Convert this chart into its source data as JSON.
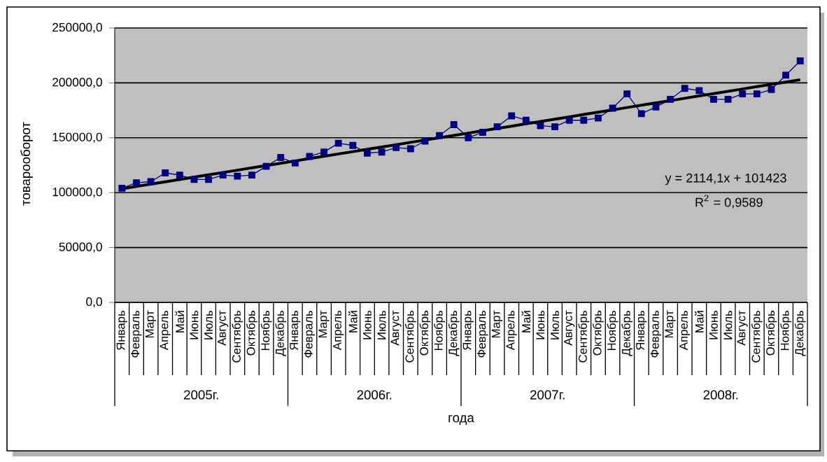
{
  "chart_data": {
    "type": "line",
    "xlabel": "года",
    "ylabel": "товарооборот",
    "categories": [
      "Январь",
      "Февраль",
      "Март",
      "Апрель",
      "Май",
      "Июнь",
      "Июль",
      "Август",
      "Сентябрь",
      "Октябрь",
      "Ноябрь",
      "Декабрь",
      "Январь",
      "Февраль",
      "Март",
      "Апрель",
      "Май",
      "Июнь",
      "Июль",
      "Август",
      "Сентябрь",
      "Октябрь",
      "Ноябрь",
      "Декабрь",
      "Январь",
      "Февраль",
      "Март",
      "Апрель",
      "Май",
      "Июнь",
      "Июль",
      "Август",
      "Сентябрь",
      "Октябрь",
      "Ноябрь",
      "Декабрь",
      "Январь",
      "Февраль",
      "Март",
      "Апрель",
      "Май",
      "Июнь",
      "Июль",
      "Август",
      "Сентябрь",
      "Октябрь",
      "Ноябрь",
      "Декабрь"
    ],
    "series": [
      {
        "type": "line",
        "color": "#000080",
        "marker": "square",
        "values": [
          104000,
          109000,
          110000,
          118000,
          116000,
          112000,
          112000,
          116000,
          115000,
          116000,
          124000,
          132000,
          127000,
          133000,
          137000,
          145000,
          143000,
          136000,
          137000,
          141000,
          140000,
          147000,
          152000,
          162000,
          150000,
          155000,
          160000,
          170000,
          166000,
          161000,
          160000,
          166000,
          166000,
          168000,
          177000,
          190000,
          172000,
          178000,
          185000,
          195000,
          193000,
          185000,
          185000,
          190000,
          190000,
          194000,
          207000,
          220000
        ]
      },
      {
        "type": "line",
        "color": "#000000",
        "marker": "none",
        "values": [
          103537,
          105651,
          107765,
          109879,
          111994,
          114108,
          116222,
          118336,
          120450,
          122564,
          124678,
          126792,
          128906,
          131020,
          133135,
          135249,
          137363,
          139477,
          141591,
          143705,
          145819,
          147933,
          150047,
          152161,
          154276,
          156390,
          158504,
          160618,
          162732,
          164846,
          166960,
          169074,
          171188,
          173302,
          175417,
          177531,
          179645,
          181759,
          183873,
          185987,
          188101,
          190215,
          192329,
          194443,
          196558,
          198672,
          200786,
          202900
        ]
      }
    ],
    "ylim": [
      0,
      250000
    ],
    "yticks": [
      {
        "value": 0,
        "label": "0,0"
      },
      {
        "value": 50000,
        "label": "50000,0"
      },
      {
        "value": 100000,
        "label": "100000,0"
      },
      {
        "value": 150000,
        "label": "150000,0"
      },
      {
        "value": 200000,
        "label": "200000,0"
      },
      {
        "value": 250000,
        "label": "250000,0"
      }
    ],
    "grid": "y",
    "legend": false,
    "annotations": [
      "y = 2114,1x + 101423",
      "R$^{2}$ = 0,9589",
      "2005г.",
      "2006г.",
      "2007г.",
      "2008г."
    ]
  }
}
